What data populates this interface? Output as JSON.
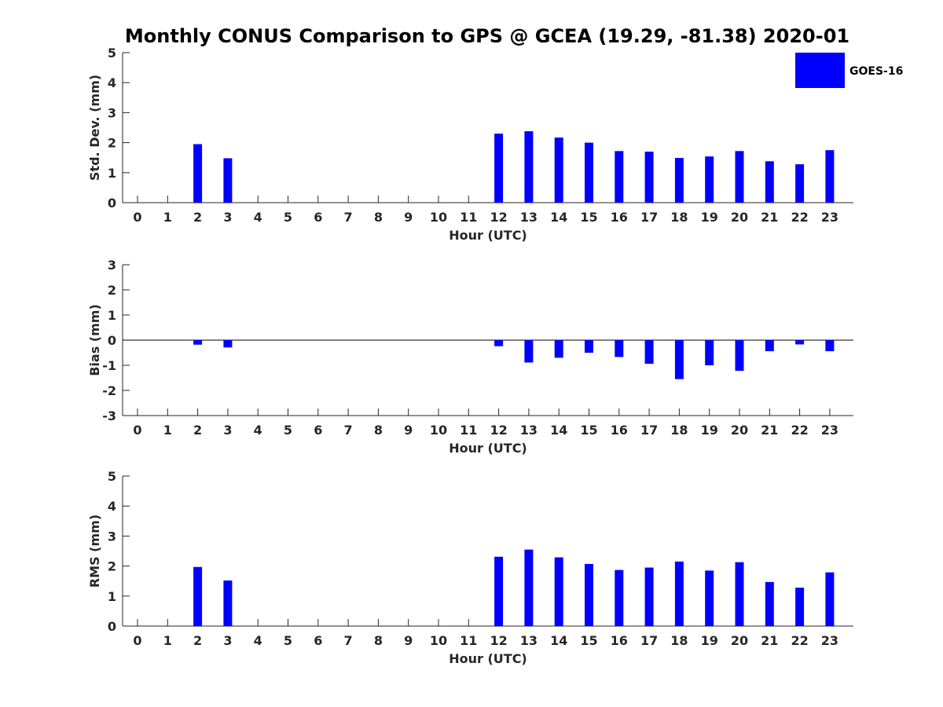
{
  "title": "Monthly CONUS Comparison to GPS @ GCEA (19.29, -81.38) 2020-01",
  "legend": {
    "label": "GOES-16",
    "color": "#0000ff",
    "placement": "top-right"
  },
  "chart_data": [
    {
      "type": "bar",
      "xlabel": "Hour (UTC)",
      "ylabel": "Std. Dev. (mm)",
      "ylim": [
        0,
        5
      ],
      "yticks": [
        0,
        1,
        2,
        3,
        4,
        5
      ],
      "categories": [
        "0",
        "1",
        "2",
        "3",
        "4",
        "5",
        "6",
        "7",
        "8",
        "9",
        "10",
        "11",
        "12",
        "13",
        "14",
        "15",
        "16",
        "17",
        "18",
        "19",
        "20",
        "21",
        "22",
        "23"
      ],
      "series": [
        {
          "name": "GOES-16",
          "color": "#0000ff",
          "values": [
            null,
            null,
            1.95,
            1.48,
            null,
            null,
            null,
            null,
            null,
            null,
            null,
            null,
            2.3,
            2.38,
            2.17,
            2.0,
            1.72,
            1.7,
            1.49,
            1.54,
            1.72,
            1.38,
            1.28,
            1.75
          ]
        }
      ]
    },
    {
      "type": "bar",
      "xlabel": "Hour (UTC)",
      "ylabel": "Bias (mm)",
      "ylim": [
        -3,
        3
      ],
      "yticks": [
        -3,
        -2,
        -1,
        0,
        1,
        2,
        3
      ],
      "categories": [
        "0",
        "1",
        "2",
        "3",
        "4",
        "5",
        "6",
        "7",
        "8",
        "9",
        "10",
        "11",
        "12",
        "13",
        "14",
        "15",
        "16",
        "17",
        "18",
        "19",
        "20",
        "21",
        "22",
        "23"
      ],
      "series": [
        {
          "name": "GOES-16",
          "color": "#0000ff",
          "values": [
            null,
            null,
            -0.18,
            -0.29,
            null,
            null,
            null,
            null,
            null,
            null,
            null,
            null,
            -0.24,
            -0.89,
            -0.7,
            -0.5,
            -0.67,
            -0.94,
            -1.55,
            -1.0,
            -1.22,
            -0.44,
            -0.17,
            -0.44
          ]
        }
      ]
    },
    {
      "type": "bar",
      "xlabel": "Hour (UTC)",
      "ylabel": "RMS (mm)",
      "ylim": [
        0,
        5
      ],
      "yticks": [
        0,
        1,
        2,
        3,
        4,
        5
      ],
      "categories": [
        "0",
        "1",
        "2",
        "3",
        "4",
        "5",
        "6",
        "7",
        "8",
        "9",
        "10",
        "11",
        "12",
        "13",
        "14",
        "15",
        "16",
        "17",
        "18",
        "19",
        "20",
        "21",
        "22",
        "23"
      ],
      "series": [
        {
          "name": "GOES-16",
          "color": "#0000ff",
          "values": [
            null,
            null,
            1.97,
            1.52,
            null,
            null,
            null,
            null,
            null,
            null,
            null,
            null,
            2.31,
            2.55,
            2.29,
            2.07,
            1.87,
            1.95,
            2.15,
            1.85,
            2.13,
            1.47,
            1.28,
            1.79
          ]
        }
      ]
    }
  ]
}
